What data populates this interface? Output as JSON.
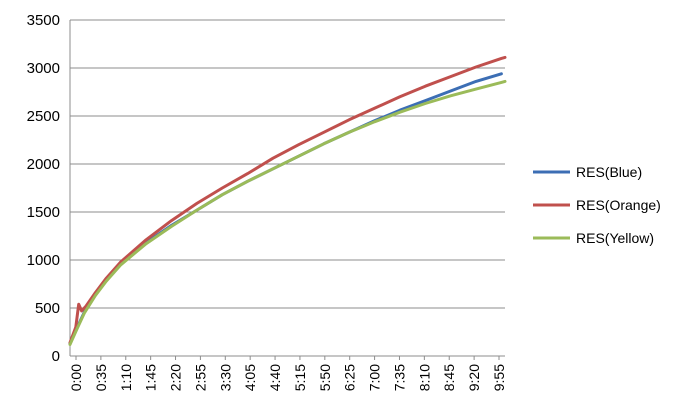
{
  "chart_data": {
    "type": "line",
    "title": "",
    "xlabel": "",
    "ylabel": "",
    "ylim": [
      0,
      3500
    ],
    "yticks": [
      0,
      500,
      1000,
      1500,
      2000,
      2500,
      3000,
      3500
    ],
    "x_categories": [
      "0:00",
      "0:35",
      "1:10",
      "1:45",
      "2:20",
      "2:55",
      "3:30",
      "4:05",
      "4:40",
      "5:15",
      "5:50",
      "6:25",
      "7:00",
      "7:35",
      "8:10",
      "8:45",
      "9:20",
      "9:55"
    ],
    "x_range_seconds": [
      0,
      600
    ],
    "grid": "horizontal",
    "legend_position": "right",
    "series": [
      {
        "name": "RES(Blue)",
        "color": "#3c6eb4",
        "x_seconds": [
          0,
          10,
          20,
          35,
          50,
          70,
          105,
          140,
          175,
          210,
          245,
          280,
          315,
          350,
          385,
          420,
          455,
          490,
          525,
          560,
          595
        ],
        "values": [
          130,
          300,
          460,
          640,
          790,
          960,
          1180,
          1360,
          1520,
          1680,
          1820,
          1950,
          2080,
          2210,
          2330,
          2450,
          2560,
          2660,
          2760,
          2860,
          2940
        ]
      },
      {
        "name": "RES(Orange)",
        "color": "#c0504d",
        "x_seconds": [
          0,
          8,
          12,
          16,
          22,
          35,
          50,
          70,
          105,
          140,
          175,
          210,
          245,
          280,
          315,
          350,
          385,
          420,
          455,
          490,
          525,
          560,
          595,
          600
        ],
        "values": [
          140,
          300,
          540,
          470,
          520,
          660,
          810,
          980,
          1210,
          1410,
          1590,
          1750,
          1900,
          2060,
          2200,
          2330,
          2460,
          2580,
          2700,
          2810,
          2910,
          3010,
          3100,
          3110
        ]
      },
      {
        "name": "RES(Yellow)",
        "color": "#9bbb59",
        "x_seconds": [
          0,
          10,
          20,
          35,
          50,
          70,
          105,
          140,
          175,
          210,
          245,
          280,
          315,
          350,
          385,
          420,
          455,
          490,
          525,
          560,
          595,
          600
        ],
        "values": [
          120,
          290,
          450,
          630,
          780,
          950,
          1170,
          1350,
          1520,
          1680,
          1820,
          1950,
          2080,
          2210,
          2330,
          2440,
          2540,
          2630,
          2710,
          2780,
          2850,
          2860
        ]
      }
    ]
  }
}
